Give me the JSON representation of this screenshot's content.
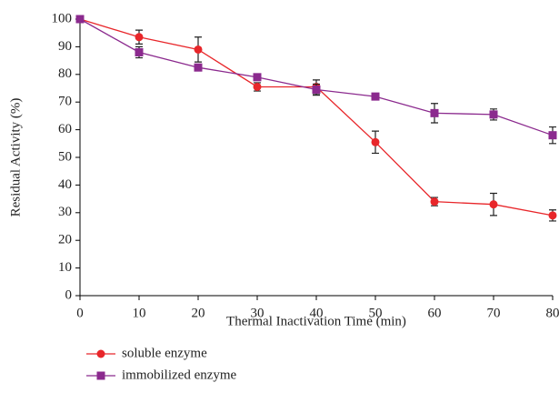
{
  "chart_data": {
    "type": "line",
    "xlabel": "Thermal Inactivation Time (min)",
    "ylabel": "Residual Activity (%)",
    "x": [
      0,
      10,
      20,
      30,
      40,
      50,
      60,
      70,
      80
    ],
    "series": [
      {
        "name": "soluble enzyme",
        "color": "#e8262a",
        "marker": "circle",
        "values": [
          100,
          93.5,
          89,
          75.5,
          75.5,
          55.5,
          34,
          33,
          29
        ],
        "errors": [
          null,
          2.5,
          4.5,
          1.5,
          2.5,
          4,
          1.5,
          4,
          2
        ]
      },
      {
        "name": "immobilized enzyme",
        "color": "#8b2a8e",
        "marker": "square",
        "values": [
          100,
          88,
          82.5,
          79,
          74.5,
          72,
          66,
          65.5,
          58
        ],
        "errors": [
          null,
          2,
          null,
          null,
          2,
          null,
          3.5,
          2,
          3
        ]
      }
    ],
    "xlim": [
      0,
      80
    ],
    "xticks": [
      0,
      10,
      20,
      30,
      40,
      50,
      60,
      70,
      80
    ],
    "ylim": [
      0,
      100
    ],
    "yticks": [
      0,
      10,
      20,
      30,
      40,
      50,
      60,
      70,
      80,
      90,
      100
    ],
    "grid": false
  }
}
